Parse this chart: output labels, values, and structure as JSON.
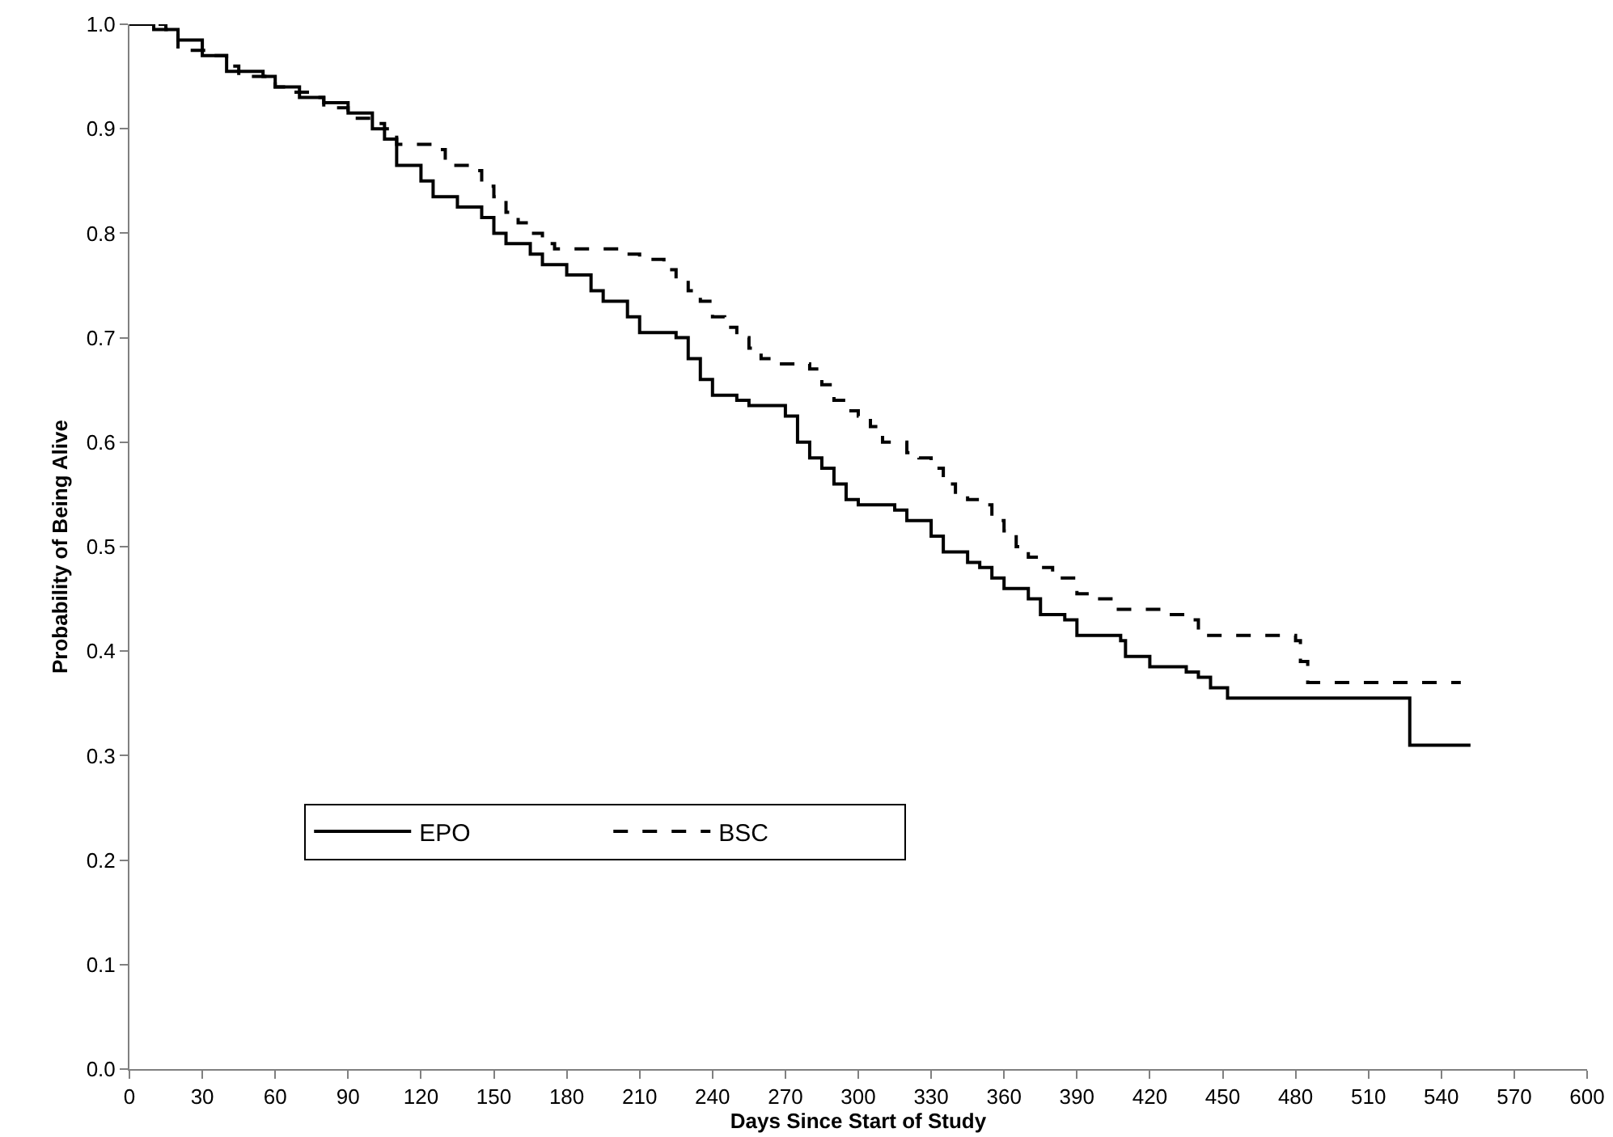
{
  "chart_data": {
    "type": "step",
    "xlabel": "Days Since Start of Study",
    "ylabel": "Probability of Being Alive",
    "series": [
      {
        "name": "EPO",
        "color": "#000000",
        "line_style": "solid",
        "x": [
          0,
          10,
          20,
          30,
          40,
          55,
          60,
          70,
          80,
          90,
          100,
          105,
          110,
          120,
          125,
          135,
          145,
          150,
          155,
          165,
          170,
          180,
          190,
          195,
          205,
          210,
          225,
          230,
          235,
          240,
          250,
          255,
          270,
          275,
          280,
          285,
          290,
          295,
          300,
          315,
          320,
          330,
          335,
          345,
          350,
          355,
          360,
          370,
          375,
          385,
          390,
          408,
          410,
          420,
          435,
          440,
          445,
          452,
          527,
          552
        ],
        "values": [
          1.0,
          0.995,
          0.985,
          0.97,
          0.955,
          0.95,
          0.94,
          0.93,
          0.925,
          0.915,
          0.9,
          0.89,
          0.865,
          0.85,
          0.835,
          0.825,
          0.815,
          0.8,
          0.79,
          0.78,
          0.77,
          0.76,
          0.745,
          0.735,
          0.72,
          0.705,
          0.7,
          0.68,
          0.66,
          0.645,
          0.64,
          0.635,
          0.625,
          0.6,
          0.585,
          0.575,
          0.56,
          0.545,
          0.54,
          0.535,
          0.525,
          0.51,
          0.495,
          0.485,
          0.48,
          0.47,
          0.46,
          0.45,
          0.435,
          0.43,
          0.415,
          0.41,
          0.395,
          0.385,
          0.38,
          0.375,
          0.365,
          0.355,
          0.31,
          0.31
        ]
      },
      {
        "name": "BSC",
        "color": "#000000",
        "line_style": "dashed",
        "x": [
          0,
          15,
          20,
          35,
          40,
          45,
          60,
          65,
          75,
          80,
          90,
          100,
          105,
          110,
          125,
          130,
          140,
          145,
          150,
          155,
          160,
          165,
          170,
          175,
          205,
          210,
          220,
          225,
          230,
          235,
          240,
          245,
          250,
          255,
          260,
          265,
          280,
          285,
          290,
          295,
          300,
          305,
          310,
          320,
          325,
          330,
          335,
          340,
          345,
          350,
          355,
          360,
          365,
          370,
          375,
          380,
          390,
          395,
          405,
          425,
          435,
          440,
          480,
          482,
          485,
          548
        ],
        "values": [
          1.0,
          0.995,
          0.975,
          0.97,
          0.96,
          0.95,
          0.94,
          0.935,
          0.93,
          0.92,
          0.91,
          0.905,
          0.9,
          0.885,
          0.88,
          0.865,
          0.86,
          0.845,
          0.835,
          0.82,
          0.81,
          0.8,
          0.79,
          0.785,
          0.78,
          0.775,
          0.765,
          0.755,
          0.745,
          0.735,
          0.72,
          0.71,
          0.7,
          0.69,
          0.68,
          0.675,
          0.67,
          0.655,
          0.64,
          0.63,
          0.625,
          0.615,
          0.6,
          0.59,
          0.585,
          0.575,
          0.56,
          0.55,
          0.545,
          0.54,
          0.525,
          0.515,
          0.5,
          0.49,
          0.48,
          0.47,
          0.455,
          0.45,
          0.44,
          0.435,
          0.43,
          0.415,
          0.41,
          0.39,
          0.37,
          0.37
        ]
      }
    ],
    "xlim": [
      0,
      600
    ],
    "xticks": [
      0,
      30,
      60,
      90,
      120,
      150,
      180,
      210,
      240,
      270,
      300,
      330,
      360,
      390,
      420,
      450,
      480,
      510,
      540,
      570,
      600
    ],
    "ylim": [
      0,
      1
    ],
    "yticks": [
      {
        "value": 0,
        "label": "0.0"
      },
      0.1,
      0.2,
      0.3,
      0.4,
      0.5,
      0.6,
      0.7,
      0.8,
      0.9,
      {
        "value": 1,
        "label": "1.0"
      }
    ],
    "grid": false,
    "legend": "bottom left",
    "marker": "none"
  }
}
